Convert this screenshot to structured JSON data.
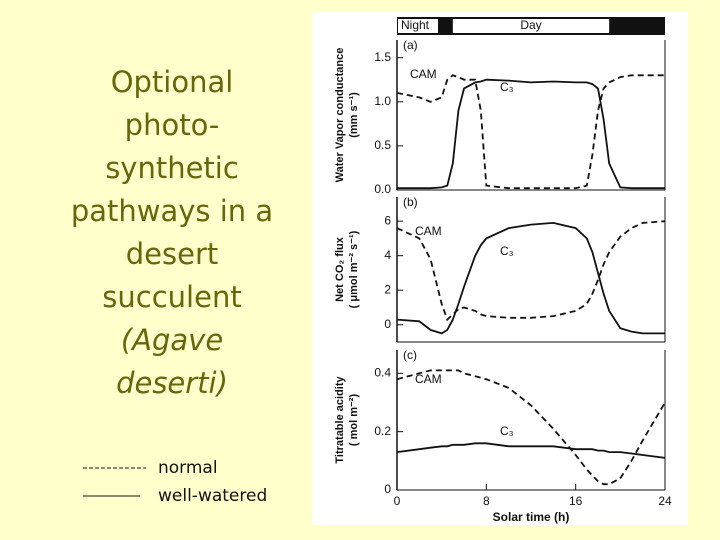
{
  "slide": {
    "title_lines": [
      "Optional",
      "photo-",
      "synthetic",
      "pathways in a",
      "desert",
      "succulent"
    ],
    "title_italic_lines": [
      "(Agave",
      "deserti)"
    ],
    "legend": [
      {
        "style": "dashed",
        "label": "normal"
      },
      {
        "style": "solid",
        "label": "well-watered"
      }
    ]
  },
  "chart_data": [
    {
      "type": "line",
      "panel_label": "(a)",
      "night_label": "Night",
      "day_label": "Day",
      "ylabel": [
        "Water Vapor conductance",
        "(mm s⁻¹)"
      ],
      "x": [
        0,
        2,
        3,
        4,
        4.5,
        5,
        5.5,
        6,
        7,
        7.5,
        8,
        10,
        12,
        14,
        16,
        17,
        17.5,
        18,
        18.5,
        19,
        20,
        21,
        22,
        24
      ],
      "xlim": [
        0,
        24
      ],
      "ylim": [
        0,
        1.7
      ],
      "yticks": [
        {
          "value": 0,
          "label": "0.0"
        },
        0.5,
        {
          "value": 1,
          "label": "1.0"
        },
        1.5
      ],
      "series": [
        {
          "name": "CAM",
          "style": "dashed",
          "color": "#111111",
          "values": [
            1.1,
            1.05,
            1.0,
            1.05,
            1.25,
            1.3,
            1.28,
            1.25,
            1.25,
            0.9,
            0.05,
            0.02,
            0.02,
            0.02,
            0.02,
            0.05,
            0.4,
            0.9,
            1.15,
            1.22,
            1.28,
            1.3,
            1.3,
            1.3
          ]
        },
        {
          "name": "C₃",
          "style": "solid",
          "color": "#111111",
          "values": [
            0.02,
            0.02,
            0.02,
            0.03,
            0.05,
            0.3,
            0.9,
            1.15,
            1.22,
            1.23,
            1.25,
            1.24,
            1.22,
            1.23,
            1.22,
            1.22,
            1.2,
            1.15,
            0.8,
            0.3,
            0.03,
            0.02,
            0.02,
            0.02
          ]
        }
      ]
    },
    {
      "type": "line",
      "panel_label": "(b)",
      "ylabel": [
        "Net CO₂ flux",
        "( μmol m⁻² s⁻¹)"
      ],
      "x": [
        0,
        2,
        3,
        4,
        4.5,
        5,
        5.5,
        6,
        7,
        7.5,
        8,
        10,
        12,
        14,
        16,
        17,
        17.5,
        18,
        18.5,
        19,
        20,
        21,
        22,
        24
      ],
      "xlim": [
        0,
        24
      ],
      "ylim": [
        -1,
        7.4
      ],
      "yticks": [
        0,
        2,
        4,
        6
      ],
      "series": [
        {
          "name": "CAM",
          "style": "dashed",
          "color": "#111111",
          "values": [
            5.6,
            5,
            3.8,
            1.2,
            0.3,
            0.6,
            0.9,
            1,
            0.8,
            0.6,
            0.5,
            0.4,
            0.4,
            0.5,
            0.8,
            1.2,
            1.8,
            2.6,
            3.5,
            4.2,
            5.1,
            5.6,
            5.9,
            6
          ]
        },
        {
          "name": "C₃",
          "style": "solid",
          "color": "#111111",
          "values": [
            0.3,
            0.2,
            -0.3,
            -0.5,
            -0.3,
            0.3,
            1.2,
            2.2,
            4,
            4.6,
            5,
            5.6,
            5.8,
            5.9,
            5.6,
            5,
            4.2,
            3,
            1.8,
            0.8,
            -0.2,
            -0.4,
            -0.5,
            -0.5
          ]
        }
      ]
    },
    {
      "type": "line",
      "panel_label": "(c)",
      "ylabel": [
        "Titratable acidity",
        "( mol m⁻²)"
      ],
      "xlabel": "Solar time (h)",
      "x": [
        0,
        2,
        3,
        4,
        4.5,
        5,
        5.5,
        6,
        7,
        7.5,
        8,
        10,
        12,
        14,
        16,
        17,
        17.5,
        18,
        18.5,
        19,
        20,
        21,
        22,
        24
      ],
      "xlim": [
        0,
        24
      ],
      "ylim": [
        0,
        0.48
      ],
      "xticks": [
        0,
        8,
        16,
        24
      ],
      "yticks": [
        0,
        0.2,
        0.4
      ],
      "series": [
        {
          "name": "CAM",
          "style": "dashed",
          "color": "#111111",
          "values": [
            0.38,
            0.4,
            0.41,
            0.41,
            0.41,
            0.41,
            0.41,
            0.4,
            0.39,
            0.385,
            0.38,
            0.35,
            0.29,
            0.21,
            0.12,
            0.07,
            0.05,
            0.03,
            0.02,
            0.02,
            0.04,
            0.1,
            0.17,
            0.3
          ]
        },
        {
          "name": "C₃",
          "style": "solid",
          "color": "#111111",
          "values": [
            0.13,
            0.14,
            0.145,
            0.15,
            0.15,
            0.155,
            0.155,
            0.155,
            0.16,
            0.16,
            0.16,
            0.15,
            0.15,
            0.15,
            0.14,
            0.14,
            0.14,
            0.135,
            0.135,
            0.13,
            0.13,
            0.125,
            0.12,
            0.11
          ]
        }
      ]
    }
  ]
}
